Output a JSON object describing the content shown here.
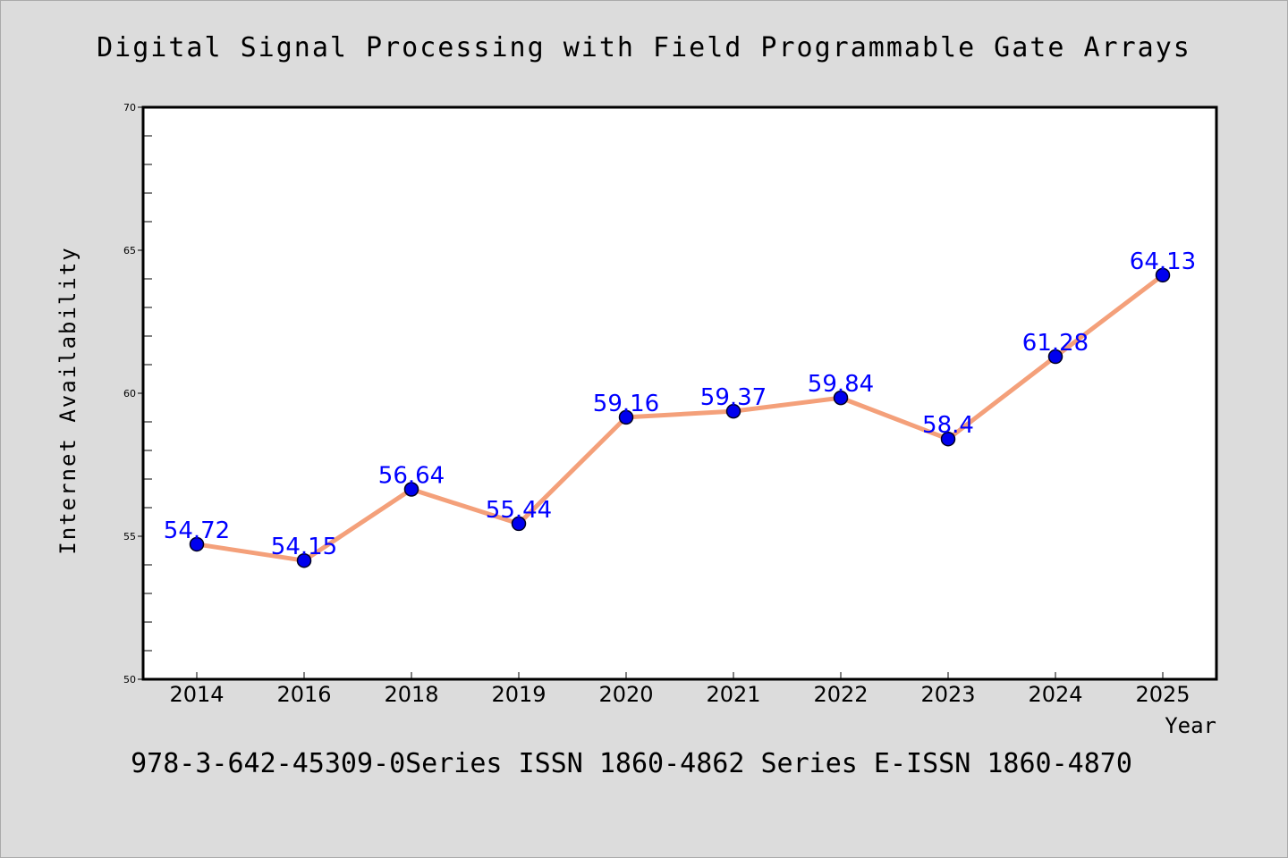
{
  "chart_data": {
    "type": "line",
    "title": "Digital Signal Processing with Field Programmable Gate Arrays",
    "xlabel": "Year",
    "ylabel": "Internet Availability",
    "caption": "978-3-642-45309-0Series ISSN 1860-4862 Series E-ISSN 1860-4870",
    "categories": [
      "2014",
      "2016",
      "2018",
      "2019",
      "2020",
      "2021",
      "2022",
      "2023",
      "2024",
      "2025"
    ],
    "values": [
      54.72,
      54.15,
      56.64,
      55.44,
      59.16,
      59.37,
      59.84,
      58.4,
      61.28,
      64.13
    ],
    "data_labels": [
      "54.72",
      "54.15",
      "56.64",
      "55.44",
      "59.16",
      "59.37",
      "59.84",
      "58.4",
      "61.28",
      "64.13"
    ],
    "ylim": [
      50,
      70
    ],
    "y_ticks": [
      "50",
      "55",
      "60",
      "65",
      "70"
    ],
    "y_minor_step": 1,
    "grid": false,
    "legend": false,
    "colors": {
      "line": "#f4a07a",
      "marker": "#0000ee",
      "data_label": "#0000ff",
      "background": "#dcdcdc",
      "plot_background": "#ffffff"
    }
  }
}
